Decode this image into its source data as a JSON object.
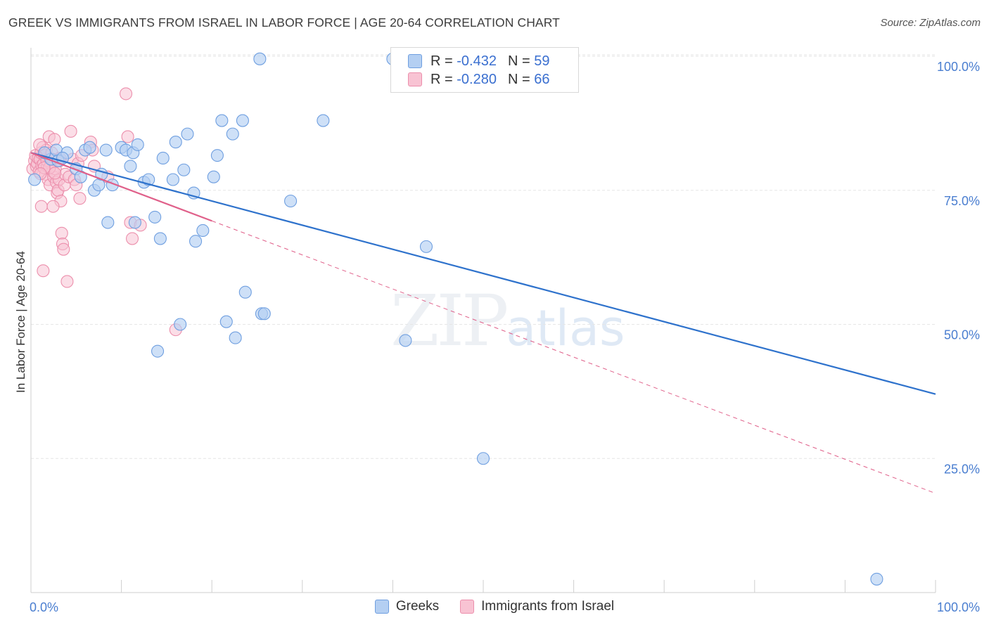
{
  "title": "GREEK VS IMMIGRANTS FROM ISRAEL IN LABOR FORCE | AGE 20-64 CORRELATION CHART",
  "source": "Source: ZipAtlas.com",
  "watermark": {
    "zip": "ZIP",
    "atlas": "atlas"
  },
  "legend_top": [
    {
      "r_label": "R =",
      "r_value": "-0.432",
      "n_label": "N =",
      "n_value": "59"
    },
    {
      "r_label": "R =",
      "r_value": "-0.280",
      "n_label": "N =",
      "n_value": "66"
    }
  ],
  "legend_bottom": [
    {
      "label": "Greeks"
    },
    {
      "label": "Immigrants from Israel"
    }
  ],
  "colors": {
    "greek_fill": "#b4cff2",
    "greek_stroke": "#6f9fe0",
    "greek_line": "#2e72cc",
    "israel_fill": "#f8c3d3",
    "israel_stroke": "#ec8fac",
    "israel_line": "#e0608a",
    "grid": "#e6e6e6",
    "tick_text": "#4a7ed0"
  },
  "chart_data": {
    "type": "scatter",
    "title": "GREEK VS IMMIGRANTS FROM ISRAEL IN LABOR FORCE | AGE 20-64 CORRELATION CHART",
    "xlabel": "",
    "ylabel": "In Labor Force | Age 20-64",
    "xlim": [
      0,
      100
    ],
    "ylim": [
      0,
      100
    ],
    "x_tick_labels": [
      "0.0%",
      "100.0%"
    ],
    "y_ticks": [
      25,
      50,
      75,
      100
    ],
    "y_tick_labels": [
      "25.0%",
      "50.0%",
      "75.0%",
      "100.0%"
    ],
    "grid": true,
    "legend_position": "bottom",
    "series": [
      {
        "name": "Greeks",
        "r": -0.432,
        "n": 59,
        "trend": {
          "x": [
            0,
            100
          ],
          "y": [
            82,
            37
          ]
        },
        "points": [
          [
            0.4,
            77
          ],
          [
            2.2,
            80.8
          ],
          [
            1.5,
            82
          ],
          [
            2.8,
            82.5
          ],
          [
            3,
            80.5
          ],
          [
            4,
            82
          ],
          [
            5,
            79
          ],
          [
            5.5,
            77.5
          ],
          [
            6,
            82.5
          ],
          [
            6.5,
            83
          ],
          [
            7,
            75
          ],
          [
            7.5,
            76
          ],
          [
            7.8,
            78
          ],
          [
            8.3,
            82.5
          ],
          [
            8.5,
            69
          ],
          [
            9,
            76
          ],
          [
            10,
            83
          ],
          [
            10.5,
            82.5
          ],
          [
            11,
            79.5
          ],
          [
            11.3,
            82
          ],
          [
            11.5,
            69
          ],
          [
            11.8,
            83.5
          ],
          [
            12.5,
            76.5
          ],
          [
            13,
            77
          ],
          [
            13.7,
            70
          ],
          [
            14.3,
            66
          ],
          [
            14.6,
            81
          ],
          [
            15.7,
            77
          ],
          [
            16,
            84
          ],
          [
            16.5,
            50
          ],
          [
            16.9,
            78.8
          ],
          [
            17.3,
            85.5
          ],
          [
            18.2,
            65.5
          ],
          [
            19,
            67.5
          ],
          [
            20.2,
            77.5
          ],
          [
            20.6,
            81.5
          ],
          [
            21.1,
            88
          ],
          [
            21.6,
            50.5
          ],
          [
            22.3,
            85.5
          ],
          [
            22.6,
            47.5
          ],
          [
            23.4,
            88
          ],
          [
            23.7,
            56
          ],
          [
            25.3,
            99.5
          ],
          [
            25.5,
            52
          ],
          [
            25.8,
            52
          ],
          [
            28.7,
            73
          ],
          [
            32.3,
            88
          ],
          [
            40,
            99.5
          ],
          [
            41,
            99.5
          ],
          [
            41.4,
            47
          ],
          [
            43.7,
            64.5
          ],
          [
            50,
            25
          ],
          [
            54.3,
            99.5
          ],
          [
            56,
            99.5
          ],
          [
            59,
            99.5
          ],
          [
            93.5,
            2.5
          ],
          [
            14,
            45
          ],
          [
            3.5,
            81
          ],
          [
            18,
            74.5
          ]
        ]
      },
      {
        "name": "Immigrants from Israel",
        "r": -0.28,
        "n": 66,
        "trend": {
          "x": [
            0,
            100
          ],
          "y": [
            82,
            18.5
          ]
        },
        "trend_solid_until": 20,
        "points": [
          [
            0.2,
            79
          ],
          [
            0.4,
            80.5
          ],
          [
            0.5,
            81.5
          ],
          [
            0.6,
            79.5
          ],
          [
            0.7,
            80
          ],
          [
            0.8,
            81
          ],
          [
            0.9,
            78.5
          ],
          [
            1,
            80.8
          ],
          [
            1.1,
            82
          ],
          [
            1.2,
            79.6
          ],
          [
            1.3,
            83
          ],
          [
            1.4,
            80
          ],
          [
            1.5,
            81.6
          ],
          [
            1.6,
            78
          ],
          [
            1.7,
            82.5
          ],
          [
            1.8,
            79.5
          ],
          [
            1.9,
            77
          ],
          [
            2,
            85
          ],
          [
            2.1,
            76
          ],
          [
            2.2,
            80
          ],
          [
            2.3,
            82
          ],
          [
            2.4,
            78.5
          ],
          [
            2.5,
            77.5
          ],
          [
            2.6,
            84.5
          ],
          [
            2.7,
            79
          ],
          [
            2.8,
            76.5
          ],
          [
            2.9,
            74.5
          ],
          [
            3,
            75
          ],
          [
            3.1,
            77
          ],
          [
            3.2,
            81
          ],
          [
            3.3,
            73
          ],
          [
            3.4,
            67
          ],
          [
            3.5,
            65
          ],
          [
            3.6,
            64
          ],
          [
            3.7,
            76
          ],
          [
            3.8,
            78
          ],
          [
            4,
            58
          ],
          [
            4.2,
            77.5
          ],
          [
            4.4,
            86
          ],
          [
            4.6,
            80.8
          ],
          [
            4.8,
            77
          ],
          [
            5,
            76
          ],
          [
            5.2,
            80
          ],
          [
            5.4,
            73.5
          ],
          [
            5.6,
            81.5
          ],
          [
            6.6,
            84
          ],
          [
            6.8,
            82.5
          ],
          [
            7,
            79.5
          ],
          [
            8.5,
            77.5
          ],
          [
            10.5,
            93
          ],
          [
            10.7,
            85
          ],
          [
            11,
            69
          ],
          [
            11.2,
            66
          ],
          [
            12.1,
            68.5
          ],
          [
            16,
            49
          ],
          [
            1.15,
            72
          ],
          [
            1.35,
            60
          ],
          [
            2.45,
            72
          ],
          [
            3.15,
            80.5
          ],
          [
            0.95,
            83.5
          ],
          [
            1.75,
            80.6
          ],
          [
            2.05,
            79.2
          ],
          [
            2.35,
            80.8
          ],
          [
            2.65,
            78.2
          ],
          [
            1.45,
            79.2
          ],
          [
            1.05,
            78.1
          ]
        ]
      }
    ]
  }
}
